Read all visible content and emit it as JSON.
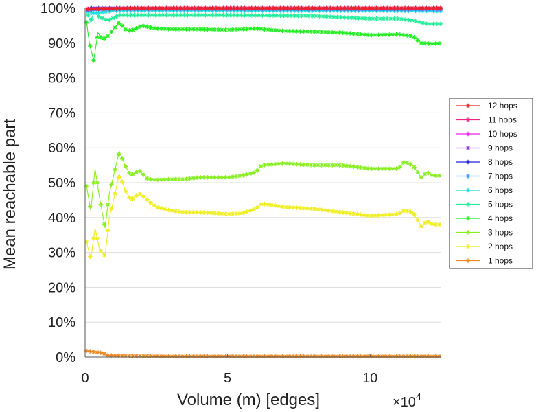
{
  "chart_data": {
    "type": "line",
    "xlabel": "Volume (m) [edges]",
    "ylabel": "Mean reachable part",
    "x_multiplier_base": "×10",
    "x_multiplier_exp": "4",
    "xlim": [
      0,
      12.5
    ],
    "ylim": [
      0,
      100
    ],
    "x_ticks": [
      0,
      5,
      10
    ],
    "x_tick_labels": [
      "0",
      "5",
      "10"
    ],
    "y_ticks": [
      0,
      10,
      20,
      30,
      40,
      50,
      60,
      70,
      80,
      90,
      100
    ],
    "y_tick_labels": [
      "0%",
      "10%",
      "20%",
      "30%",
      "40%",
      "50%",
      "60%",
      "70%",
      "80%",
      "90%",
      "100%"
    ],
    "grid": "horizontal",
    "legend_position": "right",
    "series": [
      {
        "name": "12 hops",
        "color": "#ee2222",
        "points": [
          [
            0.1,
            99.8
          ],
          [
            2,
            100
          ],
          [
            5,
            100
          ],
          [
            8,
            100
          ],
          [
            12.5,
            100
          ]
        ]
      },
      {
        "name": "11 hops",
        "color": "#ee2288",
        "points": [
          [
            0.1,
            99.8
          ],
          [
            2,
            100
          ],
          [
            5,
            100
          ],
          [
            8,
            100
          ],
          [
            12.5,
            100
          ]
        ]
      },
      {
        "name": "10 hops",
        "color": "#ee22ee",
        "points": [
          [
            0.1,
            99.8
          ],
          [
            2,
            100
          ],
          [
            5,
            100
          ],
          [
            8,
            100
          ],
          [
            12.5,
            100
          ]
        ]
      },
      {
        "name": "9 hops",
        "color": "#8833ee",
        "points": [
          [
            0.1,
            99.8
          ],
          [
            2,
            100
          ],
          [
            5,
            100
          ],
          [
            8,
            100
          ],
          [
            12.5,
            100
          ]
        ]
      },
      {
        "name": "8 hops",
        "color": "#2222dd",
        "points": [
          [
            0.1,
            99.7
          ],
          [
            0.2,
            100
          ],
          [
            2,
            100
          ],
          [
            8,
            100
          ],
          [
            12.5,
            100
          ]
        ]
      },
      {
        "name": "7 hops",
        "color": "#3399ff",
        "points": [
          [
            0.1,
            99.5
          ],
          [
            1,
            99.8
          ],
          [
            5,
            99.8
          ],
          [
            10,
            99.7
          ],
          [
            12.5,
            99.6
          ]
        ]
      },
      {
        "name": "6 hops",
        "color": "#22dddd",
        "points": [
          [
            0.1,
            99
          ],
          [
            0.3,
            98.5
          ],
          [
            1,
            99.3
          ],
          [
            5,
            99.3
          ],
          [
            10,
            99.3
          ],
          [
            12.5,
            99.2
          ]
        ]
      },
      {
        "name": "5 hops",
        "color": "#22ee99",
        "points": [
          [
            0.1,
            98
          ],
          [
            0.2,
            96
          ],
          [
            0.3,
            99
          ],
          [
            0.5,
            97.5
          ],
          [
            0.8,
            96.5
          ],
          [
            1.2,
            98
          ],
          [
            2,
            98
          ],
          [
            5,
            98
          ],
          [
            8,
            97.8
          ],
          [
            10,
            97
          ],
          [
            11,
            97
          ],
          [
            11.5,
            96.5
          ],
          [
            12,
            95.5
          ],
          [
            12.5,
            95.5
          ]
        ]
      },
      {
        "name": "4 hops",
        "color": "#22ee22",
        "points": [
          [
            0.05,
            96
          ],
          [
            0.15,
            90
          ],
          [
            0.3,
            85
          ],
          [
            0.45,
            93
          ],
          [
            0.6,
            91
          ],
          [
            0.8,
            92
          ],
          [
            1.0,
            94
          ],
          [
            1.2,
            96
          ],
          [
            1.4,
            94
          ],
          [
            1.6,
            93.5
          ],
          [
            2.0,
            95
          ],
          [
            2.5,
            94.2
          ],
          [
            3,
            94
          ],
          [
            4,
            94
          ],
          [
            5,
            93.8
          ],
          [
            6,
            94.2
          ],
          [
            6.5,
            93.8
          ],
          [
            7,
            93.5
          ],
          [
            8,
            93.3
          ],
          [
            9,
            93
          ],
          [
            10,
            92.3
          ],
          [
            11,
            92.5
          ],
          [
            11.5,
            92
          ],
          [
            11.8,
            90
          ],
          [
            12.2,
            89.8
          ],
          [
            12.5,
            90
          ]
        ]
      },
      {
        "name": "3 hops",
        "color": "#88ee22",
        "points": [
          [
            0.05,
            49
          ],
          [
            0.2,
            42
          ],
          [
            0.35,
            54
          ],
          [
            0.5,
            46
          ],
          [
            0.7,
            37
          ],
          [
            0.85,
            47
          ],
          [
            1.0,
            52
          ],
          [
            1.2,
            59
          ],
          [
            1.4,
            55
          ],
          [
            1.6,
            52
          ],
          [
            1.9,
            53.5
          ],
          [
            2.2,
            51
          ],
          [
            2.5,
            50.8
          ],
          [
            3,
            51
          ],
          [
            3.5,
            51
          ],
          [
            4,
            51.5
          ],
          [
            5,
            51.5
          ],
          [
            5.5,
            52
          ],
          [
            6,
            53
          ],
          [
            6.2,
            55
          ],
          [
            7,
            55.5
          ],
          [
            8,
            55
          ],
          [
            9,
            55
          ],
          [
            10,
            54
          ],
          [
            11,
            54
          ],
          [
            11.2,
            56
          ],
          [
            11.5,
            55
          ],
          [
            11.8,
            51.5
          ],
          [
            12,
            53
          ],
          [
            12.2,
            52
          ],
          [
            12.5,
            52
          ]
        ]
      },
      {
        "name": "2 hops",
        "color": "#eeee22",
        "points": [
          [
            0.05,
            33
          ],
          [
            0.2,
            28
          ],
          [
            0.35,
            37
          ],
          [
            0.5,
            31
          ],
          [
            0.7,
            29
          ],
          [
            0.85,
            40
          ],
          [
            1.0,
            45
          ],
          [
            1.2,
            52.5
          ],
          [
            1.4,
            48
          ],
          [
            1.6,
            45
          ],
          [
            1.9,
            47
          ],
          [
            2.2,
            45
          ],
          [
            2.5,
            43
          ],
          [
            3,
            42
          ],
          [
            3.5,
            41.5
          ],
          [
            4,
            41.5
          ],
          [
            5,
            41
          ],
          [
            5.5,
            41.2
          ],
          [
            6,
            42.5
          ],
          [
            6.2,
            44
          ],
          [
            7,
            43
          ],
          [
            8,
            42.5
          ],
          [
            9,
            41.5
          ],
          [
            10,
            40.5
          ],
          [
            11,
            41
          ],
          [
            11.2,
            42
          ],
          [
            11.5,
            41.5
          ],
          [
            11.8,
            37.5
          ],
          [
            12,
            39
          ],
          [
            12.2,
            38
          ],
          [
            12.5,
            38
          ]
        ]
      },
      {
        "name": "1 hops",
        "color": "#ee8822",
        "points": [
          [
            0.05,
            1.8
          ],
          [
            0.3,
            1.5
          ],
          [
            0.6,
            1.2
          ],
          [
            0.8,
            0.5
          ],
          [
            1.5,
            0.3
          ],
          [
            3,
            0.2
          ],
          [
            5,
            0.2
          ],
          [
            8,
            0.2
          ],
          [
            12.5,
            0.2
          ]
        ]
      }
    ]
  }
}
